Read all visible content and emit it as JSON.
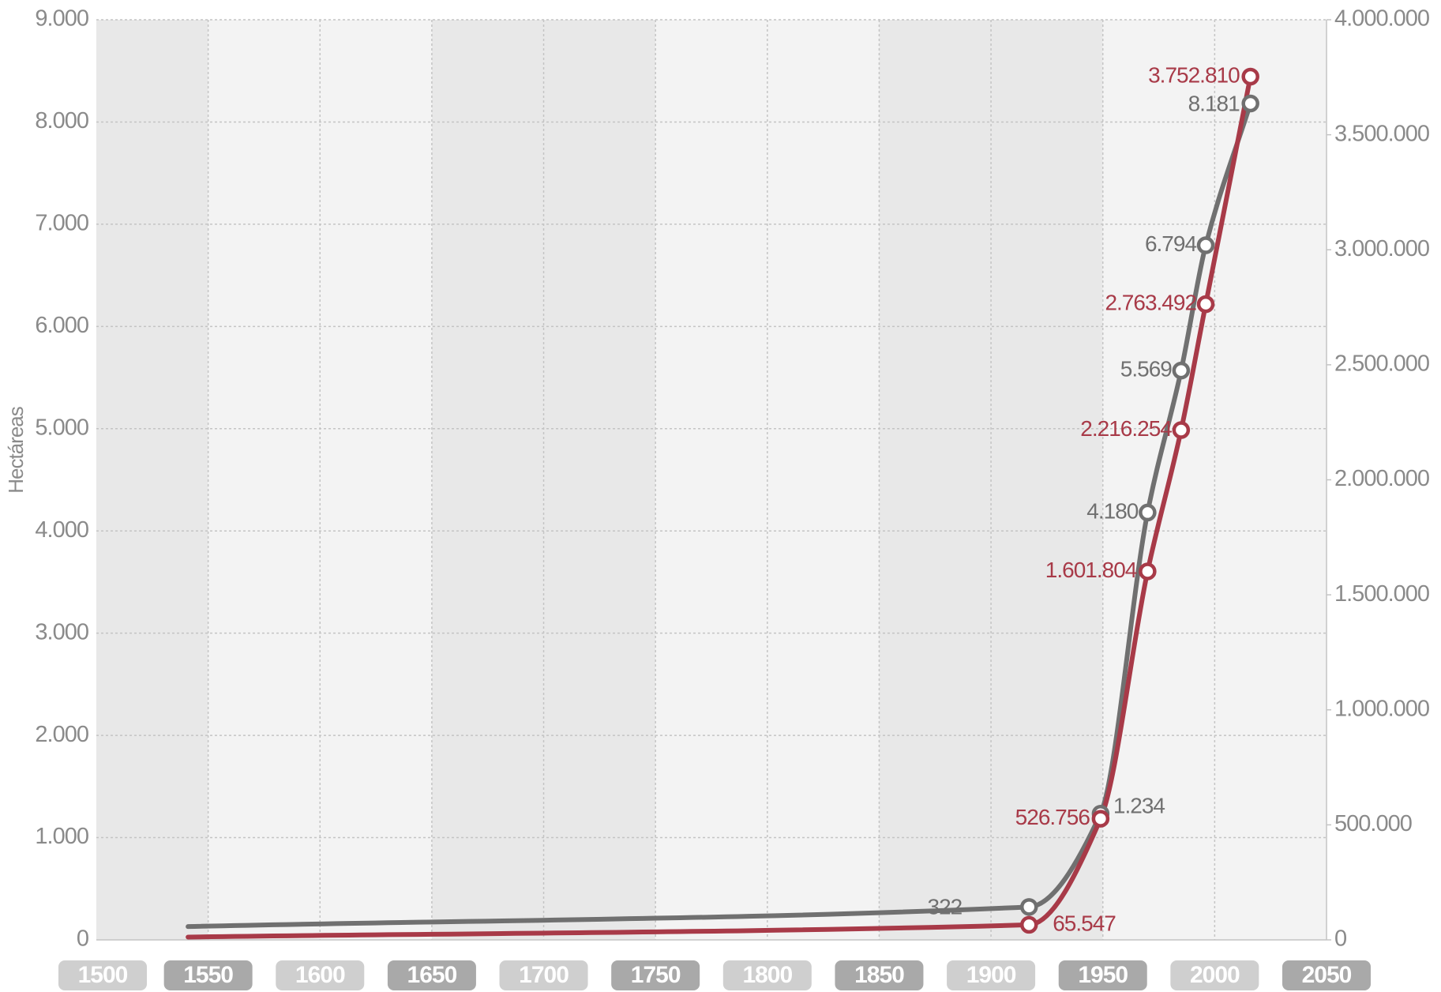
{
  "chart_data": {
    "type": "line",
    "y_label": "Hectáreas",
    "x": [
      1541,
      1917,
      1949,
      1970,
      1985,
      1996,
      2016
    ],
    "xlim": [
      1500,
      2050
    ],
    "xticks": [
      1500,
      1550,
      1600,
      1650,
      1700,
      1750,
      1800,
      1850,
      1900,
      1950,
      2000,
      2050
    ],
    "ylim": [
      0,
      9000
    ],
    "yticks": [
      0,
      {
        "value": 1000,
        "label": "1.000"
      },
      {
        "value": 2000,
        "label": "2.000"
      },
      {
        "value": 3000,
        "label": "3.000"
      },
      {
        "value": 4000,
        "label": "4.000"
      },
      {
        "value": 5000,
        "label": "5.000"
      },
      {
        "value": 6000,
        "label": "6.000"
      },
      {
        "value": 7000,
        "label": "7.000"
      },
      {
        "value": 8000,
        "label": "8.000"
      },
      {
        "value": 9000,
        "label": "9.000"
      }
    ],
    "y2lim": [
      0,
      4000000
    ],
    "y2ticks": [
      0,
      {
        "value": 500000,
        "label": "500.000"
      },
      {
        "value": 1000000,
        "label": "1.000.000"
      },
      {
        "value": 1500000,
        "label": "1.500.000"
      },
      {
        "value": 2000000,
        "label": "2.000.000"
      },
      {
        "value": 2500000,
        "label": "2.500.000"
      },
      {
        "value": 3000000,
        "label": "3.000.000"
      },
      {
        "value": 3500000,
        "label": "3.500.000"
      },
      {
        "value": 4000000,
        "label": "4.000.000"
      }
    ],
    "grid": true,
    "series": [
      {
        "color": "#707070",
        "values": [
          130,
          322,
          1234,
          4180,
          5569,
          6794,
          8181
        ],
        "value_labels": [
          null,
          "322",
          "1.234",
          "4.180",
          "5.569",
          "6.794",
          "8.181"
        ]
      },
      {
        "color": "#a83a48",
        "axis": "y2",
        "values": [
          12000,
          65547,
          526756,
          1601804,
          2216254,
          2763492,
          3752810
        ],
        "value_labels": [
          null,
          "65.547",
          "526.756",
          "1.601.804",
          "2.216.254",
          "2.763.492",
          "3.752.810"
        ]
      }
    ]
  }
}
